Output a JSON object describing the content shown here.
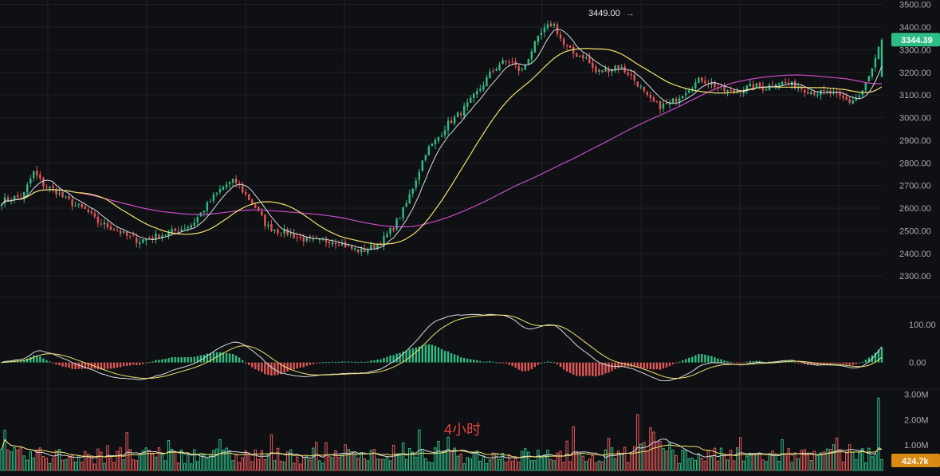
{
  "chart_data": [
    {
      "type": "candlestick",
      "name": "price",
      "yticks": [
        "3500.00",
        "3400.00",
        "3300.00",
        "3200.00",
        "3100.00",
        "3000.00",
        "2900.00",
        "2800.00",
        "2700.00",
        "2600.00",
        "2500.00",
        "2400.00",
        "2300.00"
      ],
      "ylim": [
        2230,
        3520
      ],
      "last_price_label": "3344.39",
      "high_marker_label": "3449.00",
      "overlays": [
        "ma-short",
        "ma-mid",
        "ma-long"
      ],
      "anchors": [
        2630,
        2645,
        2650,
        2760,
        2700,
        2680,
        2640,
        2610,
        2590,
        2540,
        2520,
        2500,
        2470,
        2455,
        2470,
        2480,
        2495,
        2510,
        2530,
        2590,
        2650,
        2700,
        2720,
        2660,
        2600,
        2520,
        2500,
        2490,
        2470,
        2455,
        2450,
        2460,
        2445,
        2420,
        2410,
        2430,
        2460,
        2520,
        2600,
        2720,
        2850,
        2900,
        2970,
        3010,
        3060,
        3120,
        3190,
        3240,
        3250,
        3200,
        3300,
        3380,
        3420,
        3320,
        3280,
        3270,
        3200,
        3210,
        3230,
        3200,
        3150,
        3080,
        3050,
        3060,
        3100,
        3140,
        3170,
        3150,
        3120,
        3110,
        3130,
        3140,
        3130,
        3160,
        3150,
        3140,
        3120,
        3110,
        3110,
        3090,
        3070,
        3100,
        3200,
        3344
      ]
    },
    {
      "type": "macd",
      "yticks": [
        "100.00",
        "0.00"
      ],
      "ylim": [
        -70,
        165
      ]
    },
    {
      "type": "volume",
      "yticks": [
        "3.00M",
        "2.00M",
        "1.00M"
      ],
      "ylim": [
        0,
        3200000
      ],
      "last_volume_label": "424.7k"
    }
  ],
  "timeframe_label": "4小时",
  "colors": {
    "background": "#0f1013",
    "grid": "#1d1f24",
    "up": "#2ebd85",
    "down": "#e25757",
    "ma_short": "#d7d9dc",
    "ma_mid": "#f2e06b",
    "ma_long": "#c94ac3",
    "last_price_tag": "#2ebd85",
    "last_volume_tag": "#d98a12",
    "axis_text": "#a7a9ad"
  }
}
